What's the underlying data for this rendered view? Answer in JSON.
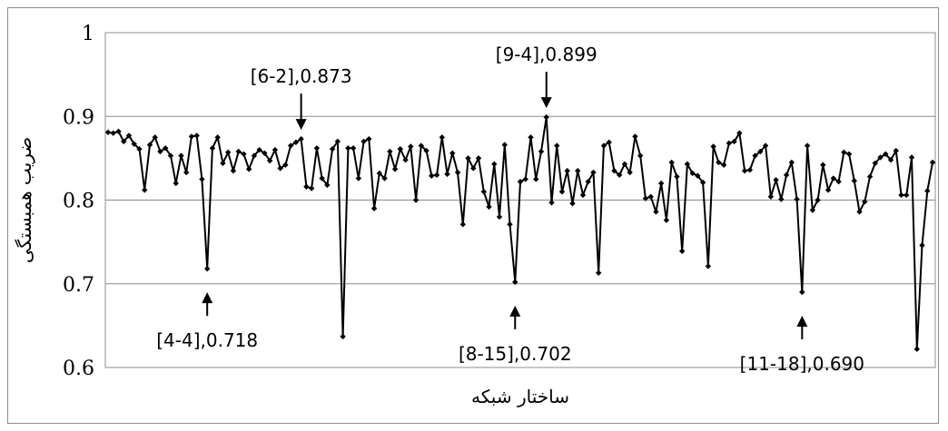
{
  "chart_data": {
    "type": "line",
    "title": "",
    "xlabel": "ساختار شبکه",
    "ylabel": "ضریب همبستگی",
    "ylim": [
      0.6,
      1.0
    ],
    "yticks": [
      "0.6",
      "0.7",
      "0.8",
      "0.9",
      "1"
    ],
    "grid": "horizontal",
    "series": [
      {
        "color": "#000000",
        "marker": "diamond",
        "values": [
          0.881,
          0.88,
          0.882,
          0.87,
          0.877,
          0.867,
          0.861,
          0.812,
          0.866,
          0.875,
          0.858,
          0.862,
          0.853,
          0.82,
          0.853,
          0.833,
          0.876,
          0.877,
          0.825,
          0.718,
          0.862,
          0.875,
          0.844,
          0.857,
          0.835,
          0.858,
          0.855,
          0.837,
          0.853,
          0.86,
          0.856,
          0.847,
          0.86,
          0.838,
          0.842,
          0.865,
          0.869,
          0.873,
          0.816,
          0.814,
          0.862,
          0.826,
          0.818,
          0.861,
          0.87,
          0.637,
          0.862,
          0.862,
          0.826,
          0.87,
          0.873,
          0.79,
          0.832,
          0.826,
          0.858,
          0.837,
          0.861,
          0.848,
          0.864,
          0.8,
          0.865,
          0.859,
          0.829,
          0.83,
          0.875,
          0.831,
          0.856,
          0.833,
          0.771,
          0.85,
          0.838,
          0.85,
          0.81,
          0.792,
          0.843,
          0.78,
          0.866,
          0.771,
          0.702,
          0.822,
          0.825,
          0.875,
          0.825,
          0.858,
          0.899,
          0.797,
          0.865,
          0.81,
          0.835,
          0.796,
          0.835,
          0.806,
          0.822,
          0.833,
          0.713,
          0.865,
          0.869,
          0.835,
          0.83,
          0.843,
          0.833,
          0.876,
          0.853,
          0.802,
          0.804,
          0.786,
          0.82,
          0.776,
          0.845,
          0.828,
          0.739,
          0.843,
          0.832,
          0.829,
          0.821,
          0.721,
          0.864,
          0.845,
          0.842,
          0.868,
          0.87,
          0.88,
          0.835,
          0.836,
          0.853,
          0.858,
          0.865,
          0.804,
          0.824,
          0.801,
          0.83,
          0.845,
          0.801,
          0.69,
          0.865,
          0.788,
          0.8,
          0.842,
          0.812,
          0.826,
          0.822,
          0.857,
          0.855,
          0.823,
          0.786,
          0.798,
          0.828,
          0.844,
          0.851,
          0.855,
          0.848,
          0.859,
          0.806,
          0.806,
          0.851,
          0.622,
          0.746,
          0.811,
          0.845
        ]
      }
    ],
    "annotations": [
      {
        "text": "[6-2],0.873",
        "index": 37,
        "value": 0.873,
        "arrow": "down"
      },
      {
        "text": "[9-4],0.899",
        "index": 84,
        "value": 0.899,
        "arrow": "down"
      },
      {
        "text": "[4-4],0.718",
        "index": 19,
        "value": 0.718,
        "arrow": "up"
      },
      {
        "text": "[8-15],0.702",
        "index": 78,
        "value": 0.702,
        "arrow": "up"
      },
      {
        "text": "[11-18],0.690",
        "index": 133,
        "value": 0.69,
        "arrow": "up"
      }
    ]
  }
}
